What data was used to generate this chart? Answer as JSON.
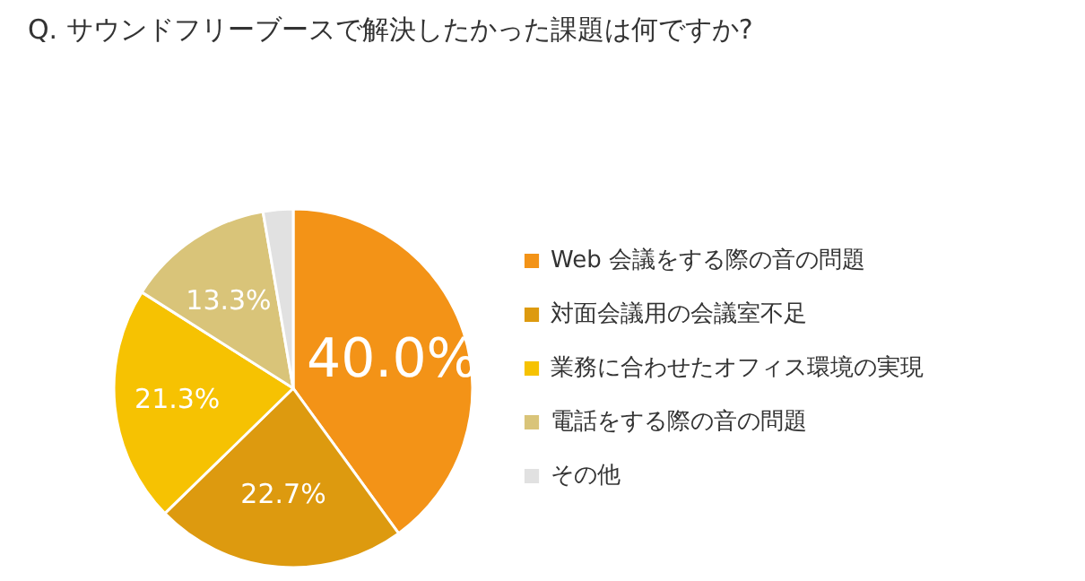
{
  "chart_data": {
    "type": "pie",
    "title": "Q. サウンドフリーブースで解決したかった課題は何ですか?",
    "categories": [
      "Web 会議をする際の音の問題",
      "対面会議用の会議室不足",
      "業務に合わせたオフィス環境の実現",
      "電話をする際の音の問題",
      "その他"
    ],
    "values": [
      40.0,
      22.7,
      21.3,
      13.3,
      2.7
    ],
    "colors": [
      "#f39317",
      "#dd9a0f",
      "#f6c202",
      "#d9c479",
      "#e1e1e1"
    ],
    "value_labels": [
      "40.0%",
      "22.7%",
      "21.3%",
      "13.3%",
      null
    ],
    "legend": "right"
  }
}
